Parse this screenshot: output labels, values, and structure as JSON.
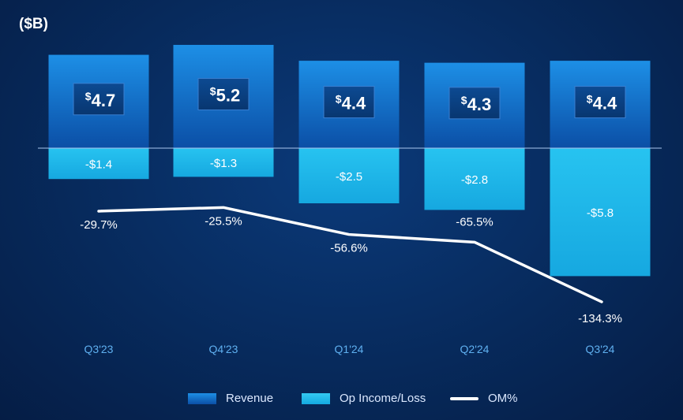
{
  "unit_label": "($B)",
  "chart_data": {
    "type": "bar",
    "categories": [
      "Q3'23",
      "Q4'23",
      "Q1'24",
      "Q2'24",
      "Q3'24"
    ],
    "series": [
      {
        "name": "Revenue",
        "values": [
          4.7,
          5.2,
          4.4,
          4.3,
          4.4
        ],
        "labels": [
          "4.7",
          "5.2",
          "4.4",
          "4.3",
          "4.4"
        ],
        "currency_symbol": "$"
      },
      {
        "name": "Op Income/Loss",
        "values": [
          -1.4,
          -1.3,
          -2.5,
          -2.8,
          -5.8
        ],
        "labels": [
          "-$1.4",
          "-$1.3",
          "-$2.5",
          "-$2.8",
          "-$5.8"
        ]
      },
      {
        "name": "OM%",
        "values": [
          -29.7,
          -25.5,
          -56.6,
          -65.5,
          -134.3
        ],
        "labels": [
          "-29.7%",
          "-25.5%",
          "-56.6%",
          "-65.5%",
          "-134.3%"
        ]
      }
    ],
    "legend": [
      "Revenue",
      "Op Income/Loss",
      "OM%"
    ],
    "legend_position": "bottom",
    "colors": {
      "revenue_top": "#1d8fe6",
      "revenue_bottom": "#0b4fa6",
      "op_loss": "#1fb8ea",
      "om_line": "#ffffff",
      "tick_label": "#5fb0f0"
    }
  }
}
